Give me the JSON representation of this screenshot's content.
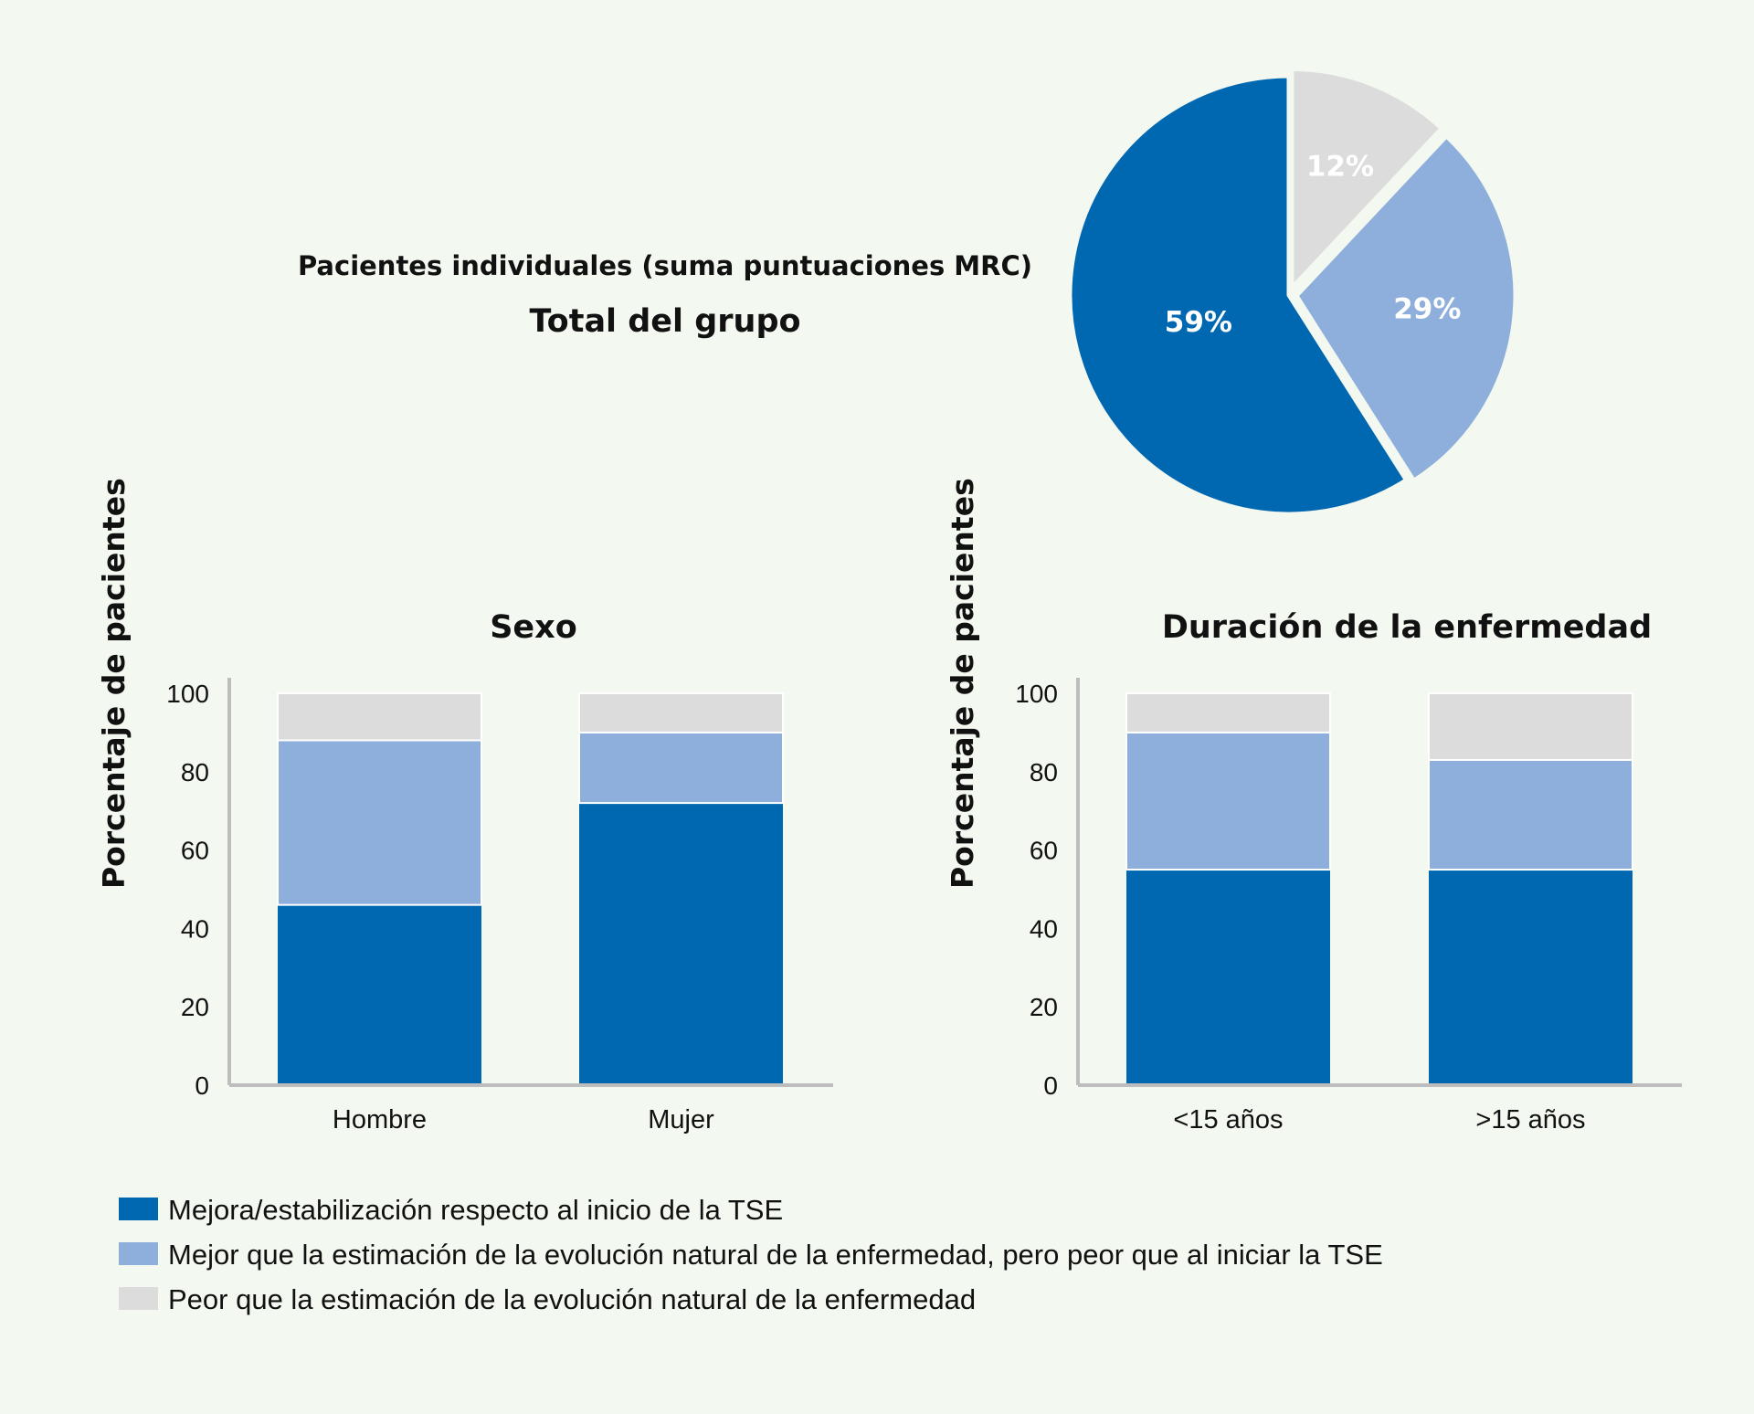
{
  "colors": {
    "dark": "#0067b1",
    "light": "#8eaedb",
    "gray": "#dcdcdc",
    "axis": "#bdbdbd",
    "background": "#f3f8f0"
  },
  "header": {
    "subtitle": "Pacientes individuales (suma puntuaciones MRC)",
    "title": "Total del grupo"
  },
  "legend": [
    "Mejora/estabilización respecto al inicio de la TSE",
    "Mejor que la estimación de la evolución natural de la enfermedad, pero peor que al iniciar la TSE",
    "Peor que la estimación de la evolución natural de la enfermedad"
  ],
  "chart_data": [
    {
      "type": "pie",
      "title": "Total del grupo",
      "slices": [
        {
          "label": "12%",
          "value": 12,
          "series": 2
        },
        {
          "label": "29%",
          "value": 29,
          "series": 1
        },
        {
          "label": "59%",
          "value": 59,
          "series": 0
        }
      ]
    },
    {
      "type": "bar",
      "stacked": true,
      "title": "Sexo",
      "ylabel": "Porcentaje de pacientes",
      "ylim": [
        0,
        100
      ],
      "yticks": [
        "0",
        "20",
        "40",
        "60",
        "80",
        "100"
      ],
      "categories": [
        "Hombre",
        "Mujer"
      ],
      "series": [
        {
          "name": "Mejora/estabilización respecto al inicio de la TSE",
          "values": [
            46,
            72
          ]
        },
        {
          "name": "Mejor que la estimación de la evolución natural, pero peor que al iniciar la TSE",
          "values": [
            42,
            18
          ]
        },
        {
          "name": "Peor que la estimación de la evolución natural",
          "values": [
            12,
            10
          ]
        }
      ]
    },
    {
      "type": "bar",
      "stacked": true,
      "title": "Duración de la enfermedad",
      "ylabel": "Porcentaje de pacientes",
      "ylim": [
        0,
        100
      ],
      "yticks": [
        "0",
        "20",
        "40",
        "60",
        "80",
        "100"
      ],
      "categories": [
        "<15 años",
        ">15 años"
      ],
      "series": [
        {
          "name": "Mejora/estabilización respecto al inicio de la TSE",
          "values": [
            55,
            55
          ]
        },
        {
          "name": "Mejor que la estimación de la evolución natural, pero peor que al iniciar la TSE",
          "values": [
            35,
            28
          ]
        },
        {
          "name": "Peor que la estimación de la evolución natural",
          "values": [
            10,
            17
          ]
        }
      ]
    }
  ]
}
